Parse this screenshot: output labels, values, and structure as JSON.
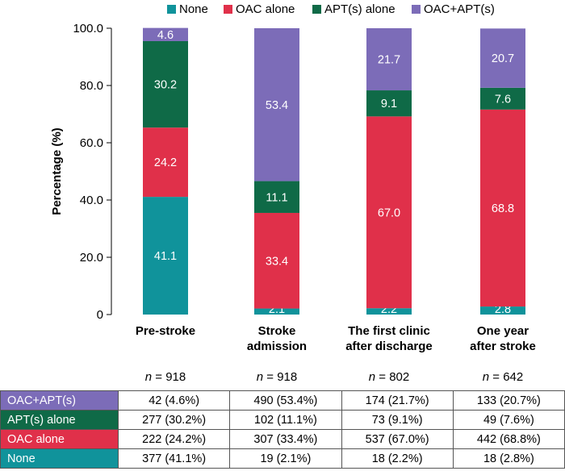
{
  "colors": {
    "none": "#10939b",
    "oac_alone": "#e0304a",
    "apt_alone": "#0f6a47",
    "oac_apt": "#7c6cb8"
  },
  "legend": [
    {
      "key": "none",
      "label": "None"
    },
    {
      "key": "oac_alone",
      "label": "OAC alone"
    },
    {
      "key": "apt_alone",
      "label": "APT(s) alone"
    },
    {
      "key": "oac_apt",
      "label": "OAC+APT(s)"
    }
  ],
  "chart_data": {
    "type": "bar",
    "stacked": true,
    "ylabel": "Percentage (%)",
    "ylim": [
      0,
      100
    ],
    "yticks": [
      "0",
      "20.0",
      "40.0",
      "60.0",
      "80.0",
      "100.0"
    ],
    "categories": [
      [
        "Pre-stroke"
      ],
      [
        "Stroke",
        "admission"
      ],
      [
        "The first clinic",
        "after discharge"
      ],
      [
        "One year",
        "after stroke"
      ]
    ],
    "n_labels": [
      "918",
      "918",
      "802",
      "642"
    ],
    "n_prefix": "n",
    "n_eq": " = ",
    "series": [
      {
        "key": "none",
        "name": "None",
        "values": [
          41.1,
          2.1,
          2.2,
          2.8
        ],
        "labels": [
          "41.1",
          "2.1",
          "2.2",
          "2.8"
        ]
      },
      {
        "key": "oac_alone",
        "name": "OAC alone",
        "values": [
          24.2,
          33.4,
          67.0,
          68.8
        ],
        "labels": [
          "24.2",
          "33.4",
          "67.0",
          "68.8"
        ]
      },
      {
        "key": "apt_alone",
        "name": "APT(s) alone",
        "values": [
          30.2,
          11.1,
          9.1,
          7.6
        ],
        "labels": [
          "30.2",
          "11.1",
          "9.1",
          "7.6"
        ]
      },
      {
        "key": "oac_apt",
        "name": "OAC+APT(s)",
        "values": [
          4.6,
          53.4,
          21.7,
          20.7
        ],
        "labels": [
          "4.6",
          "53.4",
          "21.7",
          "20.7"
        ]
      }
    ]
  },
  "table": {
    "rows": [
      {
        "key": "oac_apt",
        "label": "OAC+APT(s)",
        "cells": [
          "42 (4.6%)",
          "490 (53.4%)",
          "174 (21.7%)",
          "133 (20.7%)"
        ]
      },
      {
        "key": "apt_alone",
        "label": "APT(s) alone",
        "cells": [
          "277 (30.2%)",
          "102 (11.1%)",
          "73 (9.1%)",
          "49 (7.6%)"
        ]
      },
      {
        "key": "oac_alone",
        "label": "OAC alone",
        "cells": [
          "222 (24.2%)",
          "307 (33.4%)",
          "537 (67.0%)",
          "442 (68.8%)"
        ]
      },
      {
        "key": "none",
        "label": "None",
        "cells": [
          "377 (41.1%)",
          "19 (2.1%)",
          "18 (2.2%)",
          "18 (2.8%)"
        ]
      }
    ]
  }
}
